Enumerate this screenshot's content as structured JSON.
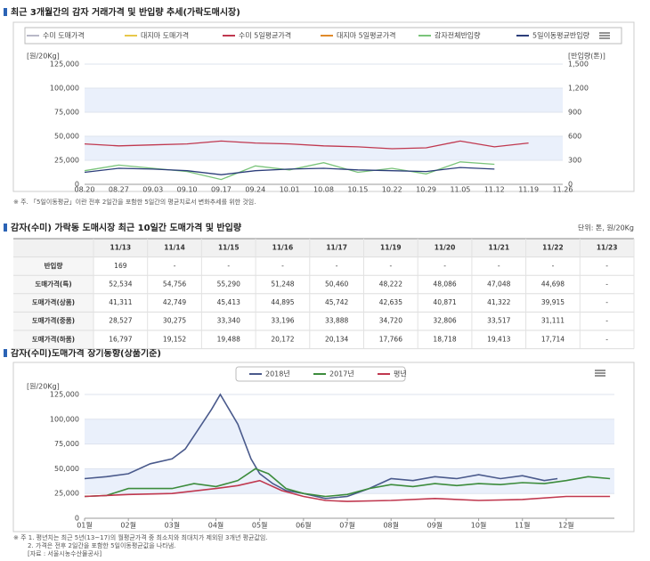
{
  "chart_data": [
    {
      "type": "line",
      "title": "최근 3개월간의 감자 거래가격 및 반입량 추세(가락도매시장)",
      "y_label": "[원/20Kg]",
      "y2_label": "[반입량(톤)]",
      "categories": [
        "08.20",
        "08.27",
        "09.03",
        "09.10",
        "09.17",
        "09.24",
        "10.01",
        "10.08",
        "10.15",
        "10.22",
        "10.29",
        "11.05",
        "11.12",
        "11.19",
        "11.26"
      ],
      "ylim": [
        0,
        125000
      ],
      "yticks": [
        0,
        {
          "value": 25000,
          "label": "25,000"
        },
        {
          "value": 50000,
          "label": "50,000"
        },
        {
          "value": 75000,
          "label": "75,000"
        },
        {
          "value": 100000,
          "label": "100,000"
        },
        {
          "value": 125000,
          "label": "125,000"
        }
      ],
      "y2lim": [
        0,
        1500
      ],
      "y2ticks": [
        0,
        300,
        600,
        900,
        {
          "value": 1200,
          "label": "1,200"
        },
        {
          "value": 1500,
          "label": "1,500"
        }
      ],
      "series": [
        {
          "name": "수미 도매가격",
          "color": "#b8b8c8",
          "values": [
            null,
            null,
            null,
            null,
            null,
            null,
            null,
            null,
            null,
            null,
            null,
            null,
            null,
            null,
            null
          ]
        },
        {
          "name": "대지마 도매가격",
          "color": "#e8c84a",
          "values": [
            null,
            null,
            null,
            null,
            null,
            null,
            null,
            null,
            null,
            null,
            null,
            null,
            null,
            null,
            null
          ]
        },
        {
          "name": "수미 5일평균가격",
          "color": "#c0384f",
          "values": [
            42000,
            40000,
            41000,
            42000,
            45000,
            43000,
            42000,
            40000,
            39000,
            37000,
            38000,
            45000,
            39000,
            43000,
            null
          ]
        },
        {
          "name": "대지마 5일평균가격",
          "color": "#e08a2a",
          "values": [
            null,
            null,
            null,
            null,
            null,
            null,
            null,
            null,
            null,
            null,
            null,
            null,
            null,
            null,
            null
          ]
        },
        {
          "name": "감자전체반입량",
          "color": "#7ac47a",
          "axis": "y2",
          "values": [
            170,
            240,
            200,
            160,
            60,
            230,
            180,
            270,
            150,
            200,
            130,
            280,
            250,
            null,
            null
          ]
        },
        {
          "name": "5일이동평균반입량",
          "color": "#2c3e7a",
          "axis": "y2",
          "values": [
            150,
            200,
            190,
            170,
            120,
            170,
            190,
            200,
            180,
            170,
            160,
            210,
            190,
            null,
            null
          ]
        }
      ],
      "note": "※ 주. 「5일이동평균」이란 전후 2일간을 포함한 5일간의 평균치로서 변화추세를 위한 것임."
    },
    {
      "type": "line",
      "title": "감자(수미)도매가격 장기동향(상품기준)",
      "y_label": "[원/20Kg]",
      "xlim": [
        1,
        13.1
      ],
      "xticks": [
        {
          "value": 1,
          "label": "01월"
        },
        {
          "value": 2,
          "label": "02월"
        },
        {
          "value": 3,
          "label": "03월"
        },
        {
          "value": 4,
          "label": "04월"
        },
        {
          "value": 5,
          "label": "05월"
        },
        {
          "value": 6,
          "label": "06월"
        },
        {
          "value": 7,
          "label": "07월"
        },
        {
          "value": 8,
          "label": "08월"
        },
        {
          "value": 9,
          "label": "09월"
        },
        {
          "value": 10,
          "label": "10월"
        },
        {
          "value": 11,
          "label": "11월"
        },
        {
          "value": 12,
          "label": "12월"
        }
      ],
      "ylim": [
        0,
        125000
      ],
      "yticks": [
        0,
        {
          "value": 25000,
          "label": "25,000"
        },
        {
          "value": 50000,
          "label": "50,000"
        },
        {
          "value": 75000,
          "label": "75,000"
        },
        {
          "value": 100000,
          "label": "100,000"
        },
        {
          "value": 125000,
          "label": "125,000"
        }
      ],
      "series": [
        {
          "name": "2018년",
          "color": "#4a5a8c",
          "x": [
            1,
            1.5,
            2,
            2.5,
            3,
            3.3,
            3.6,
            3.9,
            4.1,
            4.3,
            4.5,
            4.8,
            5,
            5.3,
            5.6,
            6,
            6.5,
            7,
            7.5,
            8,
            8.5,
            9,
            9.5,
            10,
            10.5,
            11,
            11.5,
            11.8
          ],
          "values": [
            40000,
            42000,
            45000,
            55000,
            60000,
            70000,
            90000,
            110000,
            125000,
            110000,
            95000,
            60000,
            45000,
            35000,
            28000,
            25000,
            20000,
            22000,
            30000,
            40000,
            38000,
            42000,
            40000,
            44000,
            40000,
            43000,
            38000,
            40000
          ]
        },
        {
          "name": "2017년",
          "color": "#3c8c3c",
          "x": [
            1,
            1.5,
            2,
            2.5,
            3,
            3.5,
            4,
            4.5,
            4.9,
            5.2,
            5.6,
            6,
            6.5,
            7,
            7.5,
            8,
            8.5,
            9,
            9.5,
            10,
            10.5,
            11,
            11.5,
            12,
            12.5,
            13
          ],
          "values": [
            22000,
            23000,
            30000,
            30000,
            30000,
            35000,
            32000,
            38000,
            50000,
            45000,
            30000,
            25000,
            22000,
            24000,
            30000,
            34000,
            32000,
            35000,
            33000,
            35000,
            34000,
            36000,
            35000,
            38000,
            42000,
            40000
          ]
        },
        {
          "name": "평년",
          "color": "#c0384f",
          "x": [
            1,
            2,
            3,
            4,
            4.5,
            5,
            5.5,
            6,
            6.5,
            7,
            8,
            9,
            10,
            11,
            12,
            13
          ],
          "values": [
            22000,
            24000,
            25000,
            30000,
            33000,
            38000,
            28000,
            22000,
            18000,
            17000,
            18000,
            20000,
            18000,
            19000,
            22000,
            22000
          ]
        }
      ],
      "notes": [
        "※ 주 1. 평년치는 최근 5년(13~17)의 월평균가격 중 최소치와 최대치가 제외된 3개년 평균값임.",
        "2. 가격은 전후 2일간을 포함한 5일이동평균값을 나타냄.",
        "[자료 : 서울시농수산물공사]"
      ]
    }
  ],
  "table": {
    "title": "감자(수미) 가락동 도매시장 최근 10일간 도매가격 및 반입량",
    "unit": "단위: 톤, 원/20Kg",
    "header": [
      "11/13",
      "11/14",
      "11/15",
      "11/16",
      "11/17",
      "11/19",
      "11/20",
      "11/21",
      "11/22",
      "11/23"
    ],
    "rows": [
      [
        "반입량",
        "169",
        "-",
        "-",
        "-",
        "-",
        "-",
        "-",
        "-",
        "-",
        "-"
      ],
      [
        "도매가격(특)",
        "52,534",
        "54,756",
        "55,290",
        "51,248",
        "50,460",
        "48,222",
        "48,086",
        "47,048",
        "44,698",
        "-"
      ],
      [
        "도매가격(상품)",
        "41,311",
        "42,749",
        "45,413",
        "44,895",
        "45,742",
        "42,635",
        "40,871",
        "41,322",
        "39,915",
        "-"
      ],
      [
        "도매가격(중품)",
        "28,527",
        "30,275",
        "33,340",
        "33,196",
        "33,888",
        "34,720",
        "32,806",
        "33,517",
        "31,111",
        "-"
      ],
      [
        "도매가격(하품)",
        "16,797",
        "19,152",
        "19,488",
        "20,172",
        "20,134",
        "17,766",
        "18,718",
        "19,413",
        "17,714",
        "-"
      ]
    ]
  }
}
